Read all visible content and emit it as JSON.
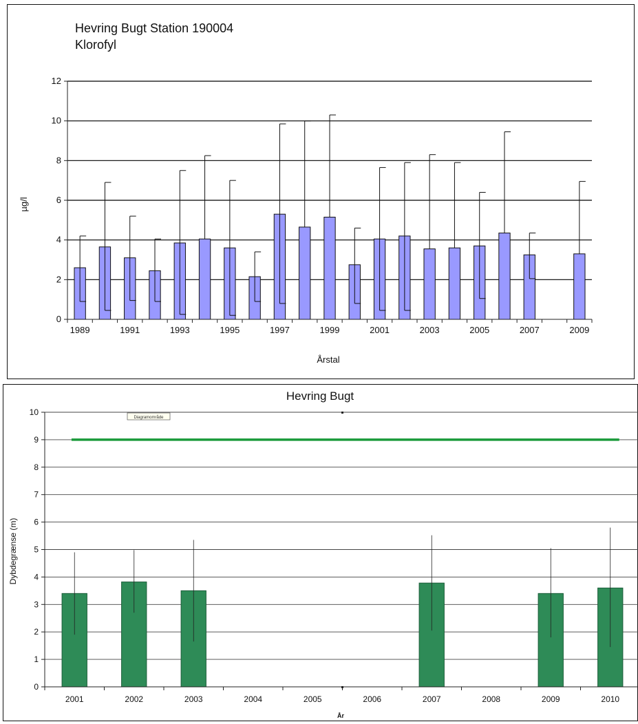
{
  "chart_data": [
    {
      "type": "bar",
      "title": "Hevring Bugt Station 190004",
      "subtitle": "Klorofyl",
      "xlabel": "Årstal",
      "ylabel": "µg/l",
      "ylim": [
        0,
        12
      ],
      "yticks": [
        0,
        2,
        4,
        6,
        8,
        10,
        12
      ],
      "grid": true,
      "bar_color": "#9999ff",
      "categories": [
        "1989",
        "1990",
        "1991",
        "1992",
        "1993",
        "1994",
        "1995",
        "1996",
        "1997",
        "1998",
        "1999",
        "2000",
        "2001",
        "2002",
        "2003",
        "2004",
        "2005",
        "2006",
        "2007",
        "2008",
        "2009"
      ],
      "xtick_labels": [
        "1989",
        "",
        "1991",
        "",
        "1993",
        "",
        "1995",
        "",
        "1997",
        "",
        "1999",
        "",
        "2001",
        "",
        "2003",
        "",
        "2005",
        "",
        "2007",
        "",
        "2009"
      ],
      "values": [
        2.6,
        3.65,
        3.1,
        2.45,
        3.85,
        4.05,
        3.6,
        2.15,
        5.3,
        4.65,
        5.15,
        2.75,
        4.05,
        4.2,
        3.55,
        3.6,
        3.7,
        4.35,
        3.25,
        null,
        3.3
      ],
      "error_low": [
        0.9,
        0.45,
        0.95,
        0.9,
        0.25,
        null,
        0.2,
        0.9,
        0.8,
        null,
        null,
        0.8,
        0.45,
        0.45,
        null,
        null,
        1.05,
        null,
        2.05,
        null,
        null
      ],
      "error_high": [
        4.2,
        6.9,
        5.2,
        4.05,
        7.5,
        8.25,
        7.0,
        3.4,
        9.85,
        10.0,
        10.3,
        4.6,
        7.65,
        7.9,
        8.3,
        7.9,
        6.4,
        9.45,
        4.35,
        null,
        6.95
      ]
    },
    {
      "type": "bar",
      "title": "Hevring Bugt",
      "xlabel": "År",
      "ylabel": "Dybdegrænse (m)",
      "ylim": [
        0,
        10
      ],
      "yticks": [
        0,
        1,
        2,
        3,
        4,
        5,
        6,
        7,
        8,
        9,
        10
      ],
      "grid": true,
      "bar_color": "#2e8b57",
      "line_color": "#1a9a3a",
      "annotation": "Diagramområde",
      "categories": [
        "2001",
        "2002",
        "2003",
        "2004",
        "2005",
        "2006",
        "2007",
        "2008",
        "2009",
        "2010"
      ],
      "values": [
        3.4,
        3.82,
        3.5,
        null,
        null,
        null,
        3.78,
        null,
        3.4,
        3.6
      ],
      "error_low": [
        1.9,
        2.7,
        1.65,
        null,
        null,
        null,
        2.05,
        null,
        1.8,
        1.45
      ],
      "error_high": [
        4.9,
        4.98,
        5.35,
        null,
        null,
        null,
        5.52,
        null,
        5.05,
        5.8
      ],
      "target_line": 9.0
    }
  ]
}
